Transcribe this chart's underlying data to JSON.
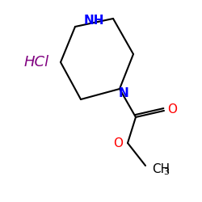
{
  "background_color": "#ffffff",
  "hcl_text": "HCl",
  "hcl_color": "#800080",
  "hcl_fontsize": 13,
  "nh_text": "NH",
  "nh_color": "#0000ff",
  "nh_fontsize": 11,
  "n_text": "N",
  "n_color": "#0000ff",
  "n_fontsize": 11,
  "o_double_text": "O",
  "o_double_color": "#ff0000",
  "o_double_fontsize": 11,
  "o_single_text": "O",
  "o_single_color": "#ff0000",
  "o_single_fontsize": 11,
  "ch3_text": "CH",
  "ch3_color": "#000000",
  "ch3_fontsize": 11,
  "three_fontsize": 8,
  "line_color": "#000000",
  "line_width": 1.5
}
